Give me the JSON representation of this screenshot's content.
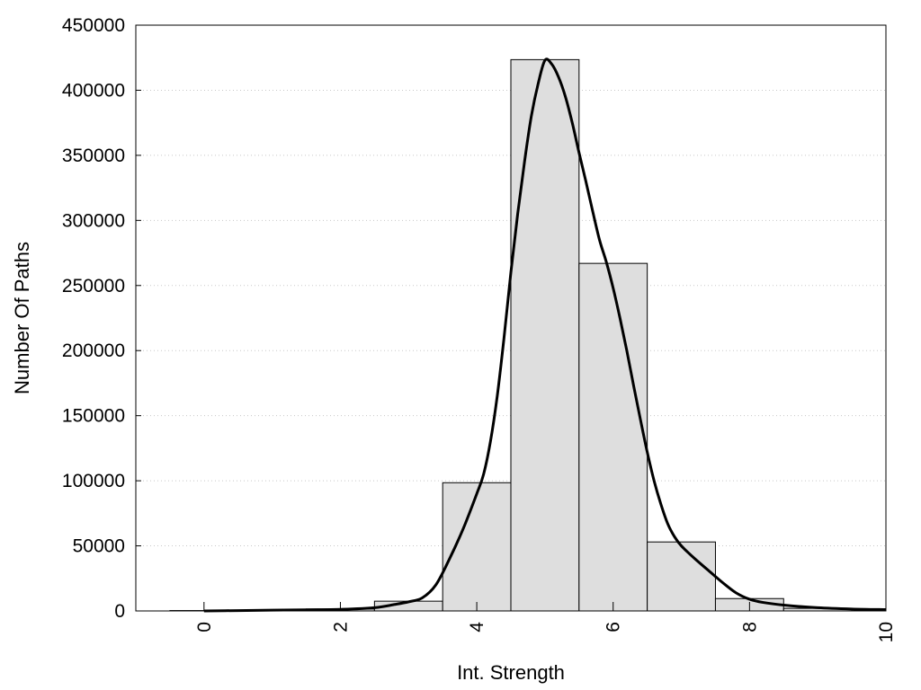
{
  "chart_data": {
    "type": "bar",
    "title": "",
    "xlabel": "Int. Strength",
    "ylabel": "Number Of Paths",
    "xlim": [
      -1,
      10
    ],
    "ylim": [
      0,
      450000
    ],
    "x_ticks": [
      0,
      2,
      4,
      6,
      8,
      10
    ],
    "y_ticks": [
      0,
      50000,
      100000,
      150000,
      200000,
      250000,
      300000,
      350000,
      400000,
      450000
    ],
    "grid": "horizontal-dotted",
    "bar_width": 1,
    "bar_color": "#dedede",
    "bars": [
      {
        "x": 0,
        "value": 300
      },
      {
        "x": 1,
        "value": 500
      },
      {
        "x": 2,
        "value": 1500
      },
      {
        "x": 3,
        "value": 7500
      },
      {
        "x": 4,
        "value": 98500
      },
      {
        "x": 5,
        "value": 423500
      },
      {
        "x": 6,
        "value": 267000
      },
      {
        "x": 7,
        "value": 53000
      },
      {
        "x": 8,
        "value": 9500
      },
      {
        "x": 9,
        "value": 2000
      }
    ],
    "curve": {
      "color": "#000000",
      "points": [
        [
          0,
          0
        ],
        [
          0.5,
          300
        ],
        [
          1,
          600
        ],
        [
          1.5,
          900
        ],
        [
          2,
          1200
        ],
        [
          2.5,
          2500
        ],
        [
          2.8,
          5000
        ],
        [
          3,
          7000
        ],
        [
          3.2,
          10000
        ],
        [
          3.4,
          20000
        ],
        [
          3.6,
          40000
        ],
        [
          3.8,
          63000
        ],
        [
          4,
          90000
        ],
        [
          4.1,
          105000
        ],
        [
          4.2,
          130000
        ],
        [
          4.3,
          165000
        ],
        [
          4.4,
          210000
        ],
        [
          4.5,
          260000
        ],
        [
          4.6,
          305000
        ],
        [
          4.7,
          345000
        ],
        [
          4.8,
          380000
        ],
        [
          4.9,
          405000
        ],
        [
          5,
          423000
        ],
        [
          5.1,
          420000
        ],
        [
          5.2,
          410000
        ],
        [
          5.3,
          395000
        ],
        [
          5.4,
          375000
        ],
        [
          5.5,
          352000
        ],
        [
          5.6,
          330000
        ],
        [
          5.7,
          307000
        ],
        [
          5.8,
          285000
        ],
        [
          5.9,
          268000
        ],
        [
          6,
          248000
        ],
        [
          6.1,
          225000
        ],
        [
          6.2,
          200000
        ],
        [
          6.3,
          173000
        ],
        [
          6.4,
          147000
        ],
        [
          6.5,
          122000
        ],
        [
          6.6,
          100000
        ],
        [
          6.7,
          82000
        ],
        [
          6.8,
          67000
        ],
        [
          6.9,
          57000
        ],
        [
          7,
          50000
        ],
        [
          7.2,
          40000
        ],
        [
          7.4,
          31000
        ],
        [
          7.6,
          22000
        ],
        [
          7.8,
          14000
        ],
        [
          8,
          9000
        ],
        [
          8.2,
          6500
        ],
        [
          8.5,
          4500
        ],
        [
          9,
          2500
        ],
        [
          9.5,
          1500
        ],
        [
          10,
          1000
        ]
      ]
    }
  }
}
